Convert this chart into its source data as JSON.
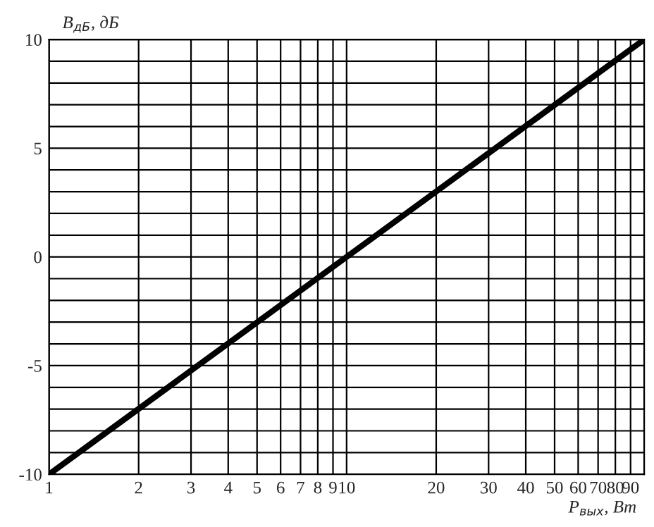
{
  "chart_data": {
    "type": "line",
    "xlabel": "P$_{вых}$, Вт",
    "ylabel": "B$_{дБ}$, дБ",
    "x": [
      1,
      100
    ],
    "series": [
      {
        "color": "#000000",
        "values": [
          -10,
          10
        ]
      }
    ],
    "log": "x",
    "grid": true,
    "marker": "none",
    "line_style": "solid",
    "xlim": [
      1,
      100
    ],
    "ylim": [
      -10,
      10
    ],
    "xticks": [
      1,
      2,
      3,
      4,
      5,
      6,
      7,
      8,
      9,
      10,
      20,
      30,
      40,
      50,
      60,
      70,
      80,
      90,
      {
        "value": 100,
        "label": null
      }
    ],
    "yticks": [
      -10,
      {
        "value": -9,
        "label": null
      },
      {
        "value": -8,
        "label": null
      },
      {
        "value": -7,
        "label": null
      },
      {
        "value": -6,
        "label": null
      },
      -5,
      {
        "value": -4,
        "label": null
      },
      {
        "value": -3,
        "label": null
      },
      {
        "value": -2,
        "label": null
      },
      {
        "value": -1,
        "label": null
      },
      0,
      {
        "value": 1,
        "label": null
      },
      {
        "value": 2,
        "label": null
      },
      {
        "value": 3,
        "label": null
      },
      {
        "value": 4,
        "label": null
      },
      5,
      {
        "value": 6,
        "label": null
      },
      {
        "value": 7,
        "label": null
      },
      {
        "value": 8,
        "label": null
      },
      {
        "value": 9,
        "label": null
      },
      10
    ]
  }
}
